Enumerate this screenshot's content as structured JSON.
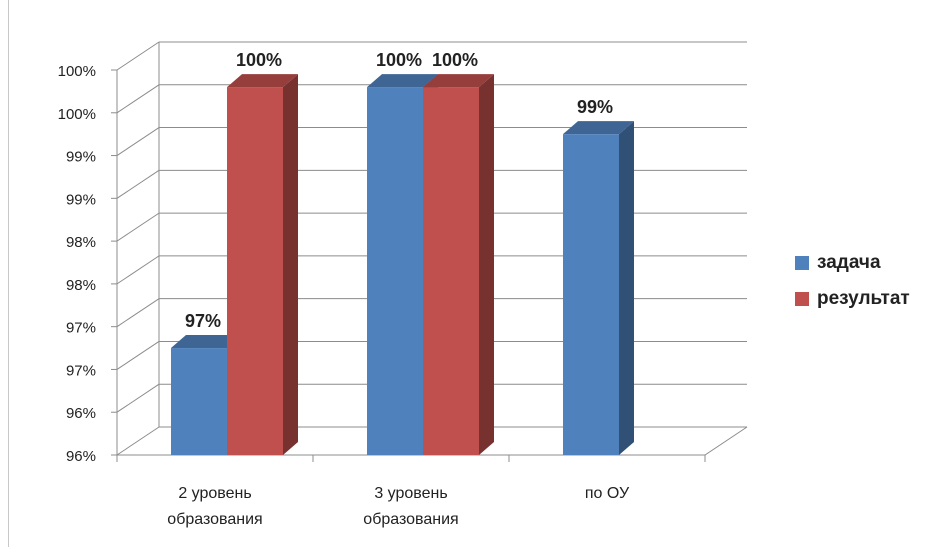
{
  "chart_data": {
    "type": "bar",
    "title": "",
    "xlabel": "",
    "ylabel": "",
    "categories": [
      [
        "2 уровень",
        "образования"
      ],
      [
        "3 уровень",
        "образования"
      ],
      [
        "по ОУ"
      ]
    ],
    "series": [
      {
        "name": "задача",
        "color": "#4f81bd",
        "values": [
          96.75,
          99.8,
          99.25
        ],
        "labels": [
          "97%",
          "100%",
          "99%"
        ]
      },
      {
        "name": "результат",
        "color": "#c0504d",
        "values": [
          99.8,
          99.8,
          null
        ],
        "labels": [
          "100%",
          "100%",
          ""
        ]
      }
    ],
    "y_ticks": [
      "96%",
      "96%",
      "97%",
      "97%",
      "98%",
      "98%",
      "99%",
      "99%",
      "100%",
      "100%"
    ],
    "ylim": [
      95.5,
      100.0
    ],
    "grid": true,
    "three_d": true,
    "legend_position": "right"
  }
}
